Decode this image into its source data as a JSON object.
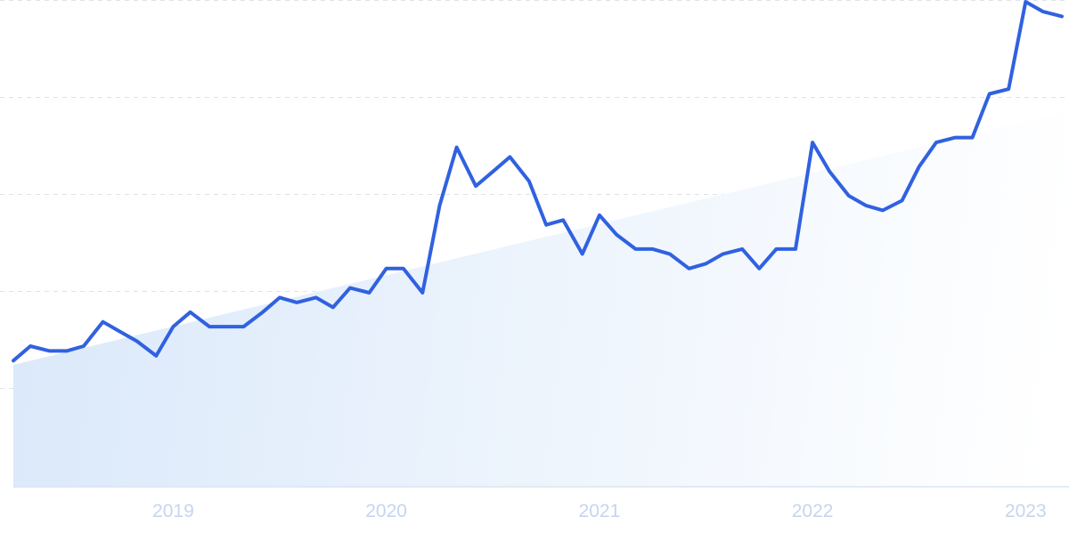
{
  "chart_data": {
    "type": "line",
    "x_tick_labels": [
      "2019",
      "2020",
      "2021",
      "2022",
      "2023"
    ],
    "x_ticks": [
      2019.0,
      2020.0,
      2021.0,
      2022.0,
      2023.0
    ],
    "xlim": [
      2018.25,
      2023.17
    ],
    "ylim": [
      0,
      100
    ],
    "grid": "horizontal dashed, no y tick labels",
    "legend": "none",
    "colors": {
      "line": "#3061e0",
      "area_top": "#dbe9fa",
      "area_bottom": "#ffffff",
      "tick_label": "#c6d5ee"
    },
    "series": [
      {
        "points": [
          [
            2018.25,
            26
          ],
          [
            2018.33,
            29
          ],
          [
            2018.42,
            28
          ],
          [
            2018.5,
            28
          ],
          [
            2018.58,
            29
          ],
          [
            2018.67,
            34
          ],
          [
            2018.75,
            32
          ],
          [
            2018.83,
            30
          ],
          [
            2018.92,
            27
          ],
          [
            2019.0,
            33
          ],
          [
            2019.08,
            36
          ],
          [
            2019.17,
            33
          ],
          [
            2019.25,
            33
          ],
          [
            2019.33,
            33
          ],
          [
            2019.42,
            36
          ],
          [
            2019.5,
            39
          ],
          [
            2019.58,
            38
          ],
          [
            2019.67,
            39
          ],
          [
            2019.75,
            37
          ],
          [
            2019.83,
            41
          ],
          [
            2019.92,
            40
          ],
          [
            2020.0,
            45
          ],
          [
            2020.08,
            45
          ],
          [
            2020.17,
            40
          ],
          [
            2020.25,
            58
          ],
          [
            2020.33,
            70
          ],
          [
            2020.42,
            62
          ],
          [
            2020.5,
            65
          ],
          [
            2020.58,
            68
          ],
          [
            2020.67,
            63
          ],
          [
            2020.75,
            54
          ],
          [
            2020.83,
            55
          ],
          [
            2020.92,
            48
          ],
          [
            2021.0,
            56
          ],
          [
            2021.08,
            52
          ],
          [
            2021.17,
            49
          ],
          [
            2021.25,
            49
          ],
          [
            2021.33,
            48
          ],
          [
            2021.42,
            45
          ],
          [
            2021.5,
            46
          ],
          [
            2021.58,
            48
          ],
          [
            2021.67,
            49
          ],
          [
            2021.75,
            45
          ],
          [
            2021.83,
            49
          ],
          [
            2021.92,
            49
          ],
          [
            2022.0,
            71
          ],
          [
            2022.08,
            65
          ],
          [
            2022.17,
            60
          ],
          [
            2022.25,
            58
          ],
          [
            2022.33,
            57
          ],
          [
            2022.42,
            59
          ],
          [
            2022.5,
            66
          ],
          [
            2022.58,
            71
          ],
          [
            2022.67,
            72
          ],
          [
            2022.75,
            72
          ],
          [
            2022.83,
            81
          ],
          [
            2022.92,
            82
          ],
          [
            2023.0,
            100
          ],
          [
            2023.08,
            98
          ],
          [
            2023.17,
            97
          ]
        ]
      }
    ]
  }
}
